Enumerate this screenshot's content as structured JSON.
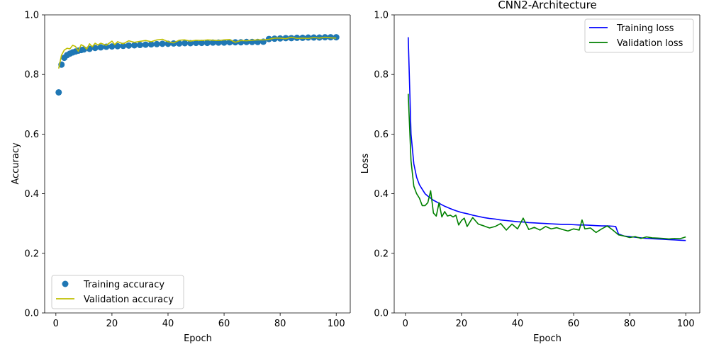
{
  "chart_data": [
    {
      "type": "line",
      "title": "",
      "xlabel": "Epoch",
      "ylabel": "Accuracy",
      "xlim": [
        -4.0,
        105.0
      ],
      "ylim": [
        0.0,
        1.0
      ],
      "xticks": [
        0,
        20,
        40,
        60,
        80,
        100
      ],
      "yticks": [
        0.0,
        0.2,
        0.4,
        0.6,
        0.8,
        1.0
      ],
      "grid": false,
      "legend_position": "lower-left",
      "series": [
        {
          "name": "Training accuracy",
          "style": "markers",
          "color": "#1f77b4",
          "x": [
            1,
            2,
            3,
            4,
            5,
            6,
            7,
            8,
            9,
            10,
            12,
            14,
            16,
            18,
            20,
            22,
            24,
            26,
            28,
            30,
            32,
            34,
            36,
            38,
            40,
            42,
            44,
            46,
            48,
            50,
            52,
            54,
            56,
            58,
            60,
            62,
            64,
            66,
            68,
            70,
            72,
            74,
            76,
            78,
            80,
            82,
            84,
            86,
            88,
            90,
            92,
            94,
            96,
            98,
            100
          ],
          "y": [
            0.74,
            0.833,
            0.856,
            0.865,
            0.87,
            0.874,
            0.877,
            0.88,
            0.882,
            0.884,
            0.886,
            0.889,
            0.891,
            0.893,
            0.894,
            0.895,
            0.896,
            0.897,
            0.898,
            0.899,
            0.9,
            0.901,
            0.902,
            0.903,
            0.903,
            0.904,
            0.904,
            0.905,
            0.905,
            0.906,
            0.906,
            0.906,
            0.907,
            0.907,
            0.907,
            0.908,
            0.908,
            0.908,
            0.909,
            0.909,
            0.909,
            0.91,
            0.919,
            0.92,
            0.921,
            0.922,
            0.922,
            0.923,
            0.923,
            0.924,
            0.924,
            0.924,
            0.925,
            0.925,
            0.925
          ]
        },
        {
          "name": "Validation accuracy",
          "style": "line",
          "color": "#bfbf00",
          "x": [
            1,
            2,
            3,
            4,
            5,
            6,
            7,
            8,
            9,
            10,
            11,
            12,
            13,
            14,
            15,
            16,
            18,
            20,
            21,
            22,
            24,
            26,
            28,
            30,
            32,
            34,
            36,
            38,
            40,
            42,
            44,
            46,
            48,
            50,
            52,
            54,
            56,
            58,
            60,
            62,
            64,
            66,
            68,
            70,
            72,
            74,
            76,
            78,
            80,
            82,
            84,
            86,
            88,
            90,
            92,
            94,
            96,
            98,
            100
          ],
          "y": [
            0.82,
            0.865,
            0.882,
            0.888,
            0.886,
            0.898,
            0.894,
            0.878,
            0.9,
            0.895,
            0.885,
            0.903,
            0.893,
            0.905,
            0.899,
            0.905,
            0.898,
            0.912,
            0.9,
            0.91,
            0.903,
            0.913,
            0.908,
            0.911,
            0.914,
            0.91,
            0.916,
            0.918,
            0.91,
            0.906,
            0.915,
            0.916,
            0.912,
            0.915,
            0.914,
            0.916,
            0.915,
            0.914,
            0.916,
            0.917,
            0.908,
            0.914,
            0.913,
            0.915,
            0.916,
            0.916,
            0.918,
            0.922,
            0.922,
            0.92,
            0.925,
            0.921,
            0.922,
            0.921,
            0.924,
            0.922,
            0.925,
            0.923,
            0.922
          ]
        }
      ]
    },
    {
      "type": "line",
      "title": "CNN2-Architecture",
      "xlabel": "Epoch",
      "ylabel": "Loss",
      "xlim": [
        -4.0,
        105.0
      ],
      "ylim": [
        0.0,
        1.0
      ],
      "xticks": [
        0,
        20,
        40,
        60,
        80,
        100
      ],
      "yticks": [
        0.0,
        0.2,
        0.4,
        0.6,
        0.8,
        1.0
      ],
      "grid": false,
      "legend_position": "top-right",
      "series": [
        {
          "name": "Training loss",
          "style": "line",
          "color": "#0000ff",
          "x": [
            1,
            2,
            3,
            4,
            5,
            6,
            7,
            8,
            9,
            10,
            12,
            14,
            16,
            18,
            20,
            22,
            24,
            26,
            28,
            30,
            32,
            34,
            36,
            38,
            40,
            42,
            44,
            46,
            48,
            50,
            52,
            54,
            56,
            58,
            60,
            62,
            64,
            66,
            68,
            70,
            72,
            74,
            75,
            76,
            78,
            80,
            82,
            84,
            86,
            88,
            90,
            92,
            94,
            96,
            98,
            100
          ],
          "y": [
            0.925,
            0.6,
            0.5,
            0.455,
            0.43,
            0.415,
            0.4,
            0.392,
            0.385,
            0.378,
            0.368,
            0.358,
            0.35,
            0.343,
            0.337,
            0.333,
            0.328,
            0.324,
            0.32,
            0.317,
            0.315,
            0.312,
            0.31,
            0.308,
            0.306,
            0.305,
            0.303,
            0.302,
            0.301,
            0.3,
            0.299,
            0.298,
            0.297,
            0.297,
            0.296,
            0.295,
            0.295,
            0.294,
            0.293,
            0.292,
            0.292,
            0.291,
            0.29,
            0.265,
            0.258,
            0.256,
            0.254,
            0.252,
            0.25,
            0.249,
            0.248,
            0.247,
            0.246,
            0.245,
            0.244,
            0.243
          ]
        },
        {
          "name": "Validation loss",
          "style": "line",
          "color": "#008000",
          "x": [
            1,
            2,
            3,
            4,
            5,
            6,
            7,
            8,
            9,
            10,
            11,
            12,
            13,
            14,
            15,
            16,
            17,
            18,
            19,
            20,
            21,
            22,
            23,
            24,
            26,
            28,
            30,
            32,
            34,
            36,
            38,
            40,
            42,
            44,
            46,
            48,
            50,
            52,
            54,
            56,
            58,
            60,
            62,
            63,
            64,
            66,
            68,
            70,
            72,
            74,
            76,
            78,
            80,
            82,
            84,
            86,
            88,
            90,
            92,
            94,
            96,
            98,
            100
          ],
          "y": [
            0.735,
            0.51,
            0.425,
            0.4,
            0.385,
            0.36,
            0.36,
            0.37,
            0.41,
            0.335,
            0.325,
            0.37,
            0.322,
            0.34,
            0.325,
            0.328,
            0.322,
            0.328,
            0.295,
            0.31,
            0.318,
            0.29,
            0.305,
            0.32,
            0.298,
            0.292,
            0.285,
            0.29,
            0.3,
            0.278,
            0.298,
            0.282,
            0.318,
            0.28,
            0.287,
            0.278,
            0.29,
            0.282,
            0.286,
            0.28,
            0.275,
            0.282,
            0.278,
            0.312,
            0.282,
            0.285,
            0.27,
            0.282,
            0.292,
            0.278,
            0.262,
            0.258,
            0.253,
            0.256,
            0.25,
            0.255,
            0.252,
            0.251,
            0.25,
            0.248,
            0.25,
            0.249,
            0.255
          ]
        }
      ]
    }
  ]
}
